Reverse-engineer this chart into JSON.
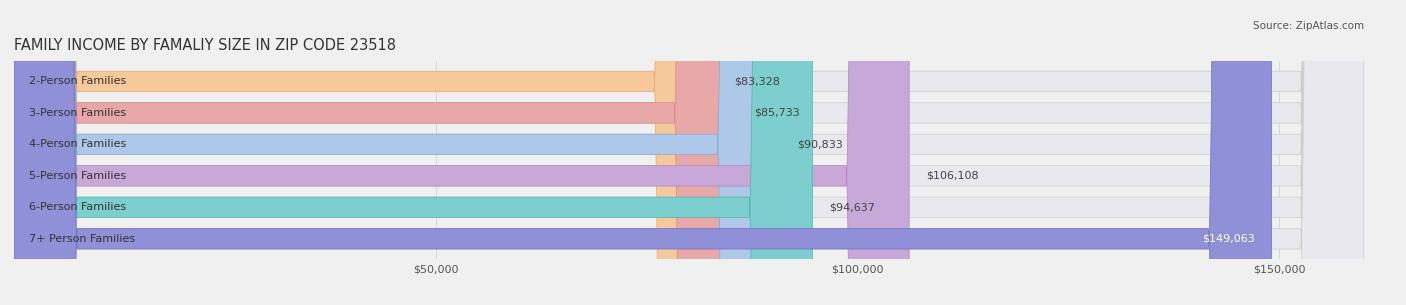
{
  "title": "FAMILY INCOME BY FAMALIY SIZE IN ZIP CODE 23518",
  "source": "Source: ZipAtlas.com",
  "categories": [
    "2-Person Families",
    "3-Person Families",
    "4-Person Families",
    "5-Person Families",
    "6-Person Families",
    "7+ Person Families"
  ],
  "values": [
    83328,
    85733,
    90833,
    106108,
    94637,
    149063
  ],
  "labels": [
    "$83,328",
    "$85,733",
    "$90,833",
    "$106,108",
    "$94,637",
    "$149,063"
  ],
  "bar_colors": [
    "#f5c99a",
    "#e8a8a8",
    "#adc8e8",
    "#c8a8d8",
    "#7dcece",
    "#9090d8"
  ],
  "bar_edge_colors": [
    "#e8a878",
    "#d88888",
    "#88a8d0",
    "#b088c0",
    "#50b0b0",
    "#7070c0"
  ],
  "background_color": "#f0f0f0",
  "bar_bg_color": "#e8e8ee",
  "xlim": [
    0,
    160000
  ],
  "xticks": [
    0,
    50000,
    100000,
    150000
  ],
  "xtick_labels": [
    "$50,000",
    "$100,000",
    "$150,000"
  ],
  "title_fontsize": 10.5,
  "label_fontsize": 8.0,
  "tick_fontsize": 8.0,
  "bar_height": 0.65,
  "bar_label_inside_threshold": 130000,
  "rounding_size": 7500
}
